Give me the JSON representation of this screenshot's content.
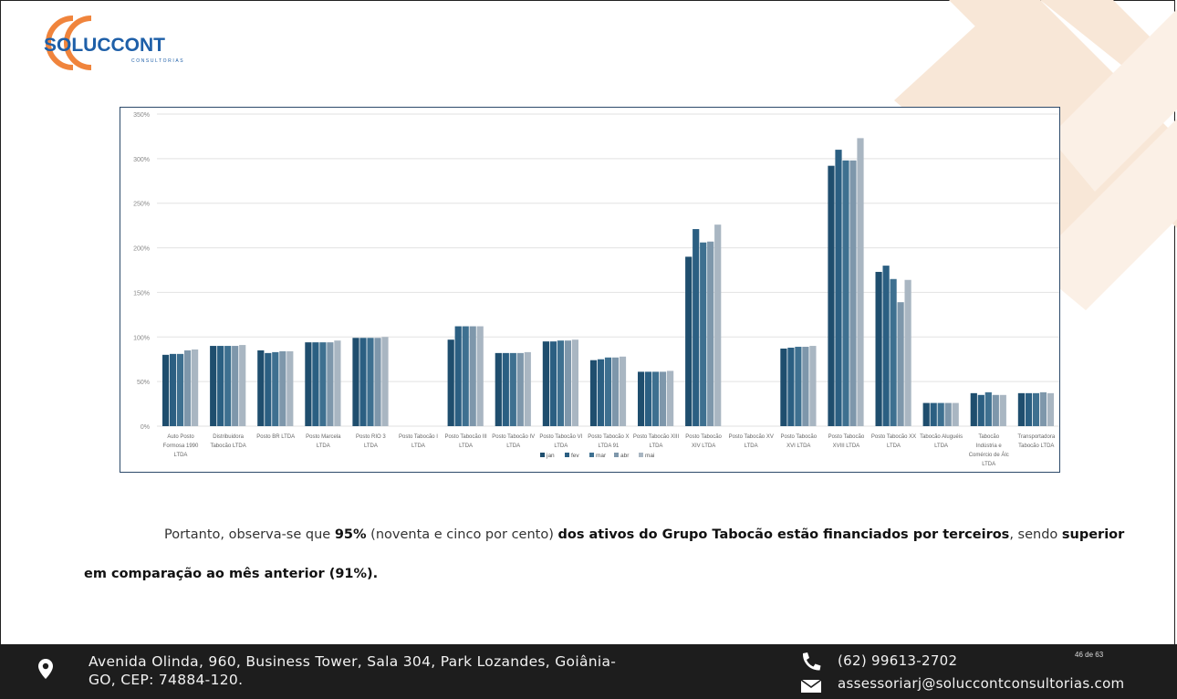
{
  "logo": {
    "name": "SOLUCCONT",
    "sub": "CONSULTORIAS"
  },
  "paragraph": {
    "line1": {
      "a": "Portanto, observa-se que ",
      "b": "95%",
      "c": " (noventa e cinco por cento) ",
      "d": "dos ativos do Grupo Tabocão estão financiados por terceiros",
      "e": ", sendo ",
      "f": "superior"
    },
    "line2": {
      "a": "em comparação ao mês anterior (91%)."
    }
  },
  "footer": {
    "address_line1": "Avenida Olinda, 960, Business Tower, Sala 304, Park Lozandes, Goiânia-",
    "address_line2": "GO, CEP: 74884-120.",
    "phone": "(62) 99613-2702",
    "email": "assessoriarj@soluccontconsultorias.com",
    "page": "46 de 63"
  },
  "colors": {
    "jan": "#1f4e6e",
    "fev": "#2b5f82",
    "mar": "#3e7090",
    "abr": "#7e97ab",
    "mai": "#a9b6c2",
    "watermark": "#f7e6d6",
    "logo_orange": "#f0843c",
    "logo_blue": "#1e5fa8"
  },
  "chart_data": {
    "type": "bar",
    "ylim": [
      0,
      350
    ],
    "yticks": [
      "0%",
      "50%",
      "100%",
      "150%",
      "200%",
      "250%",
      "300%",
      "350%"
    ],
    "grid": true,
    "legend_position": "bottom",
    "categories": [
      [
        "Auto Posto",
        "Formosa 1990",
        "LTDA"
      ],
      [
        "Distribuidora",
        "Tabocão LTDA"
      ],
      [
        "Posto BR LTDA"
      ],
      [
        "Posto Marcela",
        "LTDA"
      ],
      [
        "Posto RIO 3",
        "LTDA"
      ],
      [
        "Posto Tabocão I",
        "LTDA"
      ],
      [
        "Posto Tabocão III",
        "LTDA"
      ],
      [
        "Posto Tabocão IV",
        "LTDA"
      ],
      [
        "Posto Tabocão VI",
        "LTDA"
      ],
      [
        "Posto Tabocão X",
        "LTDA 91"
      ],
      [
        "Posto Tabocão XIII",
        "LTDA"
      ],
      [
        "Posto Tabocão",
        "XIV LTDA"
      ],
      [
        "Posto Tabocão XV",
        "LTDA"
      ],
      [
        "Posto Tabocão",
        "XVI LTDA"
      ],
      [
        "Posto Tabocão",
        "XVIII LTDA"
      ],
      [
        "Posto Tabocão XX",
        "LTDA"
      ],
      [
        "Tabocão Aluguéis",
        "LTDA"
      ],
      [
        "Tabocão",
        "Indústria e",
        "Comércio de Álc",
        "LTDA"
      ],
      [
        "Transportadora",
        "Tabocão LTDA"
      ]
    ],
    "series": [
      {
        "name": "jan",
        "values": [
          80,
          90,
          85,
          94,
          99,
          0,
          97,
          82,
          95,
          74,
          61,
          190,
          0,
          87,
          292,
          173,
          26,
          37,
          37
        ]
      },
      {
        "name": "fev",
        "values": [
          81,
          90,
          82,
          94,
          99,
          0,
          112,
          82,
          95,
          75,
          61,
          221,
          0,
          88,
          310,
          180,
          26,
          35,
          37
        ]
      },
      {
        "name": "mar",
        "values": [
          81,
          90,
          83,
          94,
          99,
          0,
          112,
          82,
          96,
          77,
          61,
          206,
          0,
          89,
          298,
          165,
          26,
          38,
          37
        ]
      },
      {
        "name": "abr",
        "values": [
          85,
          90,
          84,
          94,
          99,
          0,
          112,
          82,
          96,
          77,
          61,
          207,
          0,
          89,
          298,
          139,
          26,
          35,
          38
        ]
      },
      {
        "name": "mai",
        "values": [
          86,
          91,
          84,
          96,
          100,
          0,
          112,
          83,
          97,
          78,
          62,
          226,
          0,
          90,
          323,
          164,
          26,
          35,
          37
        ]
      }
    ]
  }
}
